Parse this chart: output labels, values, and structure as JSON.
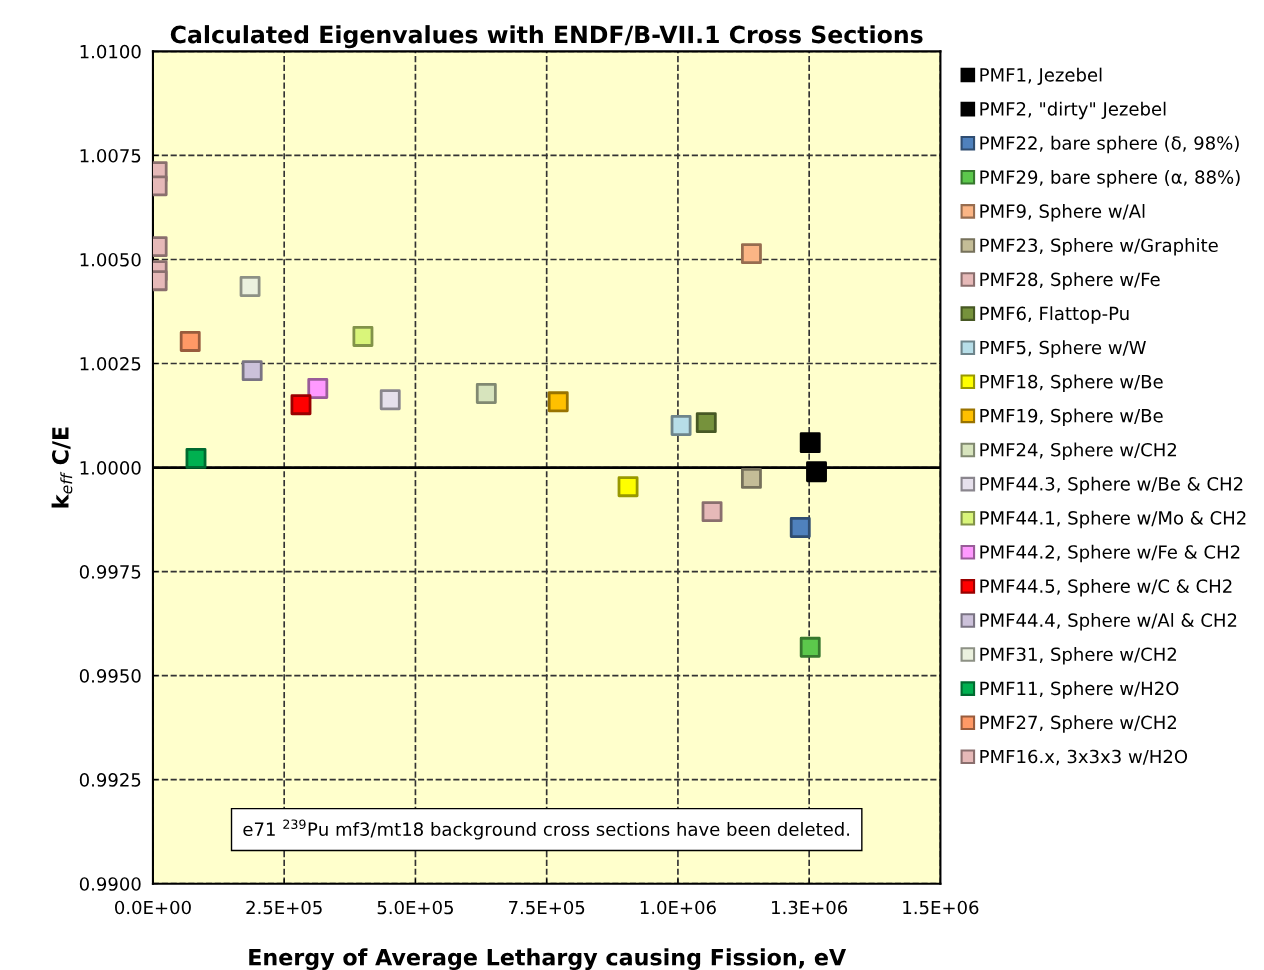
{
  "chart_data": {
    "type": "scatter",
    "title": "Calculated Eigenvalues with ENDF/B-VII.1 Cross Sections",
    "xlabel": "Energy of Average Lethargy causing Fission, eV",
    "ylabel": "k$_{eff}$ C/E",
    "xlim": [
      0,
      1500000
    ],
    "ylim": [
      0.99,
      1.01
    ],
    "xticks": [
      {
        "value": 0,
        "label": "0.0E+00"
      },
      {
        "value": 250000,
        "label": "2.5E+05"
      },
      {
        "value": 500000,
        "label": "5.0E+05"
      },
      {
        "value": 750000,
        "label": "7.5E+05"
      },
      {
        "value": 1000000,
        "label": "1.0E+06"
      },
      {
        "value": 1250000,
        "label": "1.3E+06"
      },
      {
        "value": 1500000,
        "label": "1.5E+06"
      }
    ],
    "yticks": [
      {
        "value": 0.99,
        "label": "0.9900"
      },
      {
        "value": 0.9925,
        "label": "0.9925"
      },
      {
        "value": 0.995,
        "label": "0.9950"
      },
      {
        "value": 0.9975,
        "label": "0.9975"
      },
      {
        "value": 1.0,
        "label": "1.0000"
      },
      {
        "value": 1.0025,
        "label": "1.0025"
      },
      {
        "value": 1.005,
        "label": "1.0050"
      },
      {
        "value": 1.0075,
        "label": "1.0075"
      },
      {
        "value": 1.01,
        "label": "1.0100"
      }
    ],
    "grid": true,
    "legend": "right",
    "marker": "square",
    "ref_lines": [
      {
        "axis": "y",
        "value": 1.0,
        "color": "#000000",
        "line_style": "solid"
      }
    ],
    "annotations": [
      "e71 $^{239}$Pu mf3/mt18 background cross sections have been deleted."
    ],
    "series": [
      {
        "name": "PMF1, Jezebel",
        "color": "#000000",
        "x": [
          1252000
        ],
        "values": [
          1.0006
        ]
      },
      {
        "name": "PMF2, \"dirty\" Jezebel",
        "color": "#000000",
        "x": [
          1264000
        ],
        "values": [
          0.9999
        ]
      },
      {
        "name": "PMF22, bare sphere (δ, 98%)",
        "color": "#4f81bd",
        "x": [
          1233000
        ],
        "values": [
          0.99856
        ]
      },
      {
        "name": "PMF29, bare sphere (α, 88%)",
        "color": "#5cc84c",
        "x": [
          1252000
        ],
        "values": [
          0.99568
        ]
      },
      {
        "name": "PMF9, Sphere w/Al",
        "color": "#fbb585",
        "x": [
          1140000
        ],
        "values": [
          1.00514
        ]
      },
      {
        "name": "PMF23, Sphere w/Graphite",
        "color": "#c4bd97",
        "x": [
          1140000
        ],
        "values": [
          0.99974
        ]
      },
      {
        "name": "PMF28, Sphere w/Fe",
        "color": "#e6b9b8",
        "x": [
          1065000
        ],
        "values": [
          0.99894
        ]
      },
      {
        "name": "PMF6, Flattop-Pu",
        "color": "#76923c",
        "x": [
          1054000
        ],
        "values": [
          1.00108
        ]
      },
      {
        "name": "PMF5, Sphere w/W",
        "color": "#b7dee8",
        "x": [
          1006000
        ],
        "values": [
          1.00101
        ]
      },
      {
        "name": "PMF18, Sphere w/Be",
        "color": "#ffff00",
        "x": [
          905000
        ],
        "values": [
          0.99954
        ]
      },
      {
        "name": "PMF19, Sphere w/Be",
        "color": "#ffc000",
        "x": [
          772000
        ],
        "values": [
          1.00158
        ]
      },
      {
        "name": "PMF24, Sphere w/CH2",
        "color": "#d7e4bd",
        "x": [
          635000
        ],
        "values": [
          1.00178
        ]
      },
      {
        "name": "PMF44.3, Sphere w/Be & CH2",
        "color": "#e6e0ec",
        "x": [
          452000
        ],
        "values": [
          1.00163
        ]
      },
      {
        "name": "PMF44.1, Sphere w/Mo & CH2",
        "color": "#d9f57a",
        "x": [
          400000
        ],
        "values": [
          1.00315
        ]
      },
      {
        "name": "PMF44.2, Sphere w/Fe & CH2",
        "color": "#ff99ff",
        "x": [
          314000
        ],
        "values": [
          1.0019
        ]
      },
      {
        "name": "PMF44.5, Sphere w/C & CH2",
        "color": "#ff0000",
        "x": [
          282000
        ],
        "values": [
          1.00151
        ]
      },
      {
        "name": "PMF44.4, Sphere w/Al & CH2",
        "color": "#ccc1da",
        "x": [
          189000
        ],
        "values": [
          1.00233
        ]
      },
      {
        "name": "PMF31, Sphere w/CH2",
        "color": "#ebf1de",
        "x": [
          185000
        ],
        "values": [
          1.00435
        ]
      },
      {
        "name": "PMF11, Sphere w/H2O",
        "color": "#00b050",
        "x": [
          82000
        ],
        "values": [
          1.00022
        ]
      },
      {
        "name": "PMF27, Sphere w/CH2",
        "color": "#ff9966",
        "x": [
          71000
        ],
        "values": [
          1.00303
        ]
      },
      {
        "name": "PMF16.x, 3x3x3 w/H2O",
        "color": "#e6b9b8",
        "x": [
          8000,
          8000,
          8000,
          8000,
          8000
        ],
        "values": [
          1.00711,
          1.00677,
          1.00531,
          1.00473,
          1.00449
        ]
      }
    ]
  }
}
